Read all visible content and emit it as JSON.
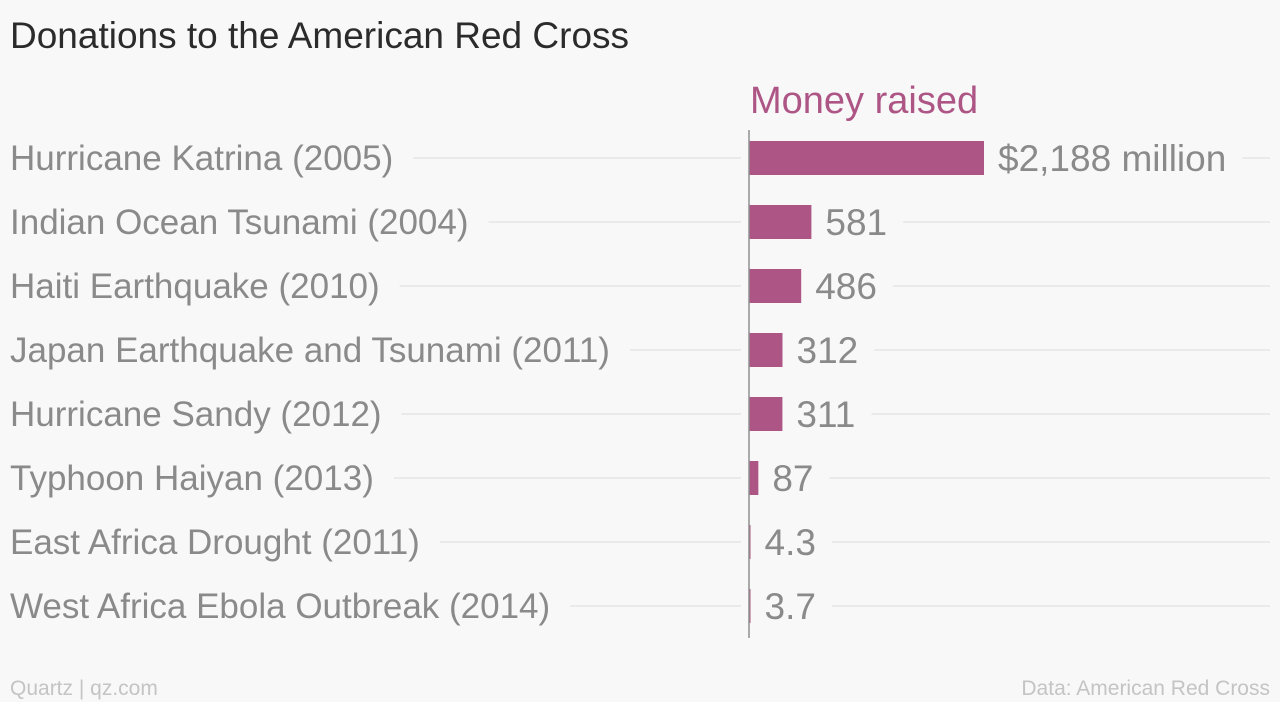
{
  "chart_data": {
    "type": "bar",
    "orientation": "horizontal",
    "title": "Donations to the American Red Cross",
    "series": [
      {
        "name": "Money raised",
        "values": [
          2188,
          581,
          486,
          312,
          311,
          87,
          4.3,
          3.7
        ],
        "value_labels": [
          "$2,188 million",
          "581",
          "486",
          "312",
          "311",
          "87",
          "4.3",
          "3.7"
        ],
        "color": "#ad5685"
      }
    ],
    "categories": [
      "Hurricane Katrina (2005)",
      "Indian Ocean Tsunami (2004)",
      "Haiti Earthquake (2010)",
      "Japan Earthquake and Tsunami (2011)",
      "Hurricane Sandy (2012)",
      "Typhoon Haiyan (2013)",
      "East Africa Drought (2011)",
      "West Africa Ebola Outbreak (2014)"
    ],
    "xlim": [
      0,
      2188
    ],
    "grid": true
  },
  "footer": {
    "source_left": "Quartz | qz.com",
    "source_right": "Data: American Red Cross"
  }
}
